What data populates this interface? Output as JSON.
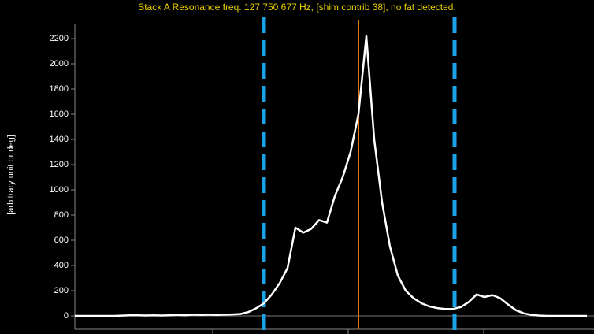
{
  "chart_data": {
    "type": "line",
    "title": "Stack A Resonance freq. 127 750 677 Hz, [shim contrib 38], no fat detected.",
    "ylabel": "[arbitrary unit or deg]",
    "series": [
      {
        "color": "#ffffff",
        "values": [
          0,
          0,
          0,
          0,
          0,
          0,
          2,
          5,
          5,
          3,
          5,
          3,
          5,
          8,
          5,
          10,
          8,
          10,
          8,
          10,
          12,
          15,
          30,
          60,
          100,
          170,
          260,
          380,
          700,
          660,
          690,
          760,
          740,
          950,
          1100,
          1300,
          1600,
          2220,
          1400,
          900,
          550,
          320,
          200,
          140,
          100,
          75,
          62,
          55,
          55,
          70,
          110,
          170,
          150,
          165,
          140,
          90,
          45,
          20,
          8,
          2,
          0,
          0,
          0,
          0,
          0,
          0
        ]
      }
    ],
    "ylim": [
      -100,
      2300
    ],
    "yticks": [
      0,
      200,
      400,
      600,
      800,
      1000,
      1200,
      1400,
      1600,
      1800,
      2000,
      2200
    ]
  }
}
